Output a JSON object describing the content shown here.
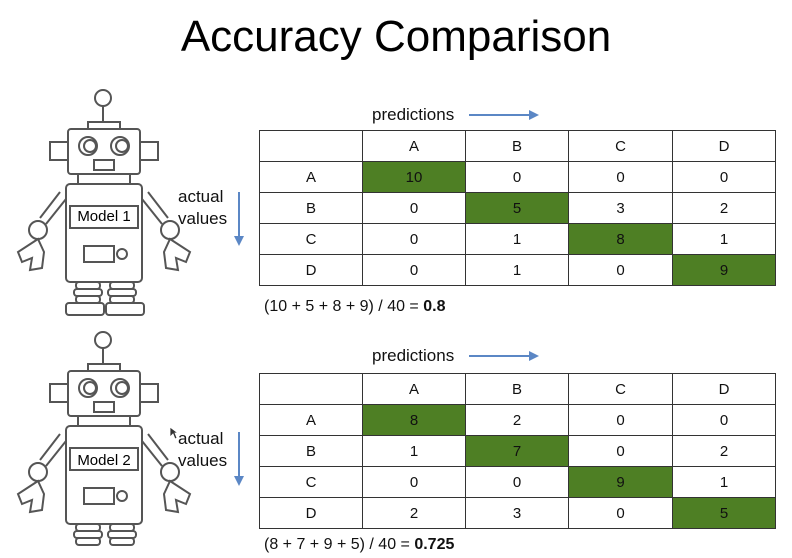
{
  "title": "Accuracy Comparison",
  "colors": {
    "diagonal_fill": "#4e7f24",
    "arrow": "#5b87c5",
    "robot_stroke": "#555555"
  },
  "icons": {
    "robot": "robot-icon",
    "right_arrow": "arrow-right-icon",
    "down_arrow": "arrow-down-icon",
    "cursor": "mouse-cursor-icon"
  },
  "models": [
    {
      "name": "Model 1",
      "predictions_label": "predictions",
      "actual_label_line1": "actual",
      "actual_label_line2": "values",
      "columns": [
        "A",
        "B",
        "C",
        "D"
      ],
      "rows": [
        {
          "label": "A",
          "values": [
            "10",
            "0",
            "0",
            "0"
          ]
        },
        {
          "label": "B",
          "values": [
            "0",
            "5",
            "3",
            "2"
          ]
        },
        {
          "label": "C",
          "values": [
            "0",
            "1",
            "8",
            "1"
          ]
        },
        {
          "label": "D",
          "values": [
            "0",
            "1",
            "0",
            "9"
          ]
        }
      ],
      "formula": "(10 + 5 + 8 + 9) / 40 = ",
      "accuracy": "0.8"
    },
    {
      "name": "Model 2",
      "predictions_label": "predictions",
      "actual_label_line1": "actual",
      "actual_label_line2": "values",
      "columns": [
        "A",
        "B",
        "C",
        "D"
      ],
      "rows": [
        {
          "label": "A",
          "values": [
            "8",
            "2",
            "0",
            "0"
          ]
        },
        {
          "label": "B",
          "values": [
            "1",
            "7",
            "0",
            "2"
          ]
        },
        {
          "label": "C",
          "values": [
            "0",
            "0",
            "9",
            "1"
          ]
        },
        {
          "label": "D",
          "values": [
            "2",
            "3",
            "0",
            "5"
          ]
        }
      ],
      "formula": "(8 + 7 + 9 + 5) / 40 = ",
      "accuracy": "0.725"
    }
  ]
}
